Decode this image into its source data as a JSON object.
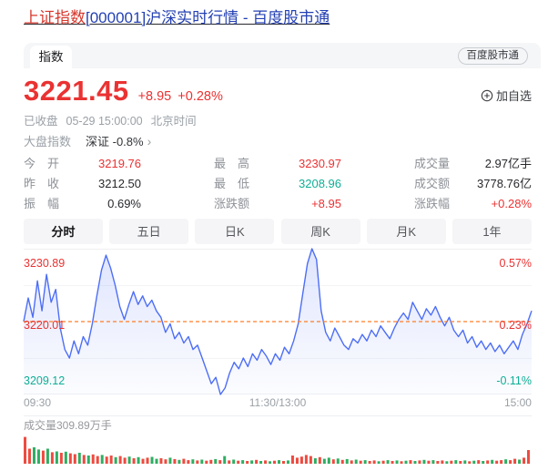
{
  "colors": {
    "red": "#ea3232",
    "green": "#0fae96",
    "dark": "#27282c",
    "gray": "#9aa0a6",
    "label_gray": "#8d9197",
    "line_blue": "#4d6ef5",
    "dashed_orange": "#ff7e26",
    "vol_red": "#ee4b40",
    "vol_green": "#2fae62",
    "link_blue": "#2440b3",
    "title_red": "#d6372c",
    "strip_bg": "#f5f6f7",
    "tab_bg": "#f5f5f7",
    "grid_line": "#eff0f3"
  },
  "header": {
    "title_stock": "上证指数",
    "title_code": "[000001]",
    "title_rest": "沪深实时行情 - 百度股市通"
  },
  "card": {
    "tab_label": "指数",
    "source_badge": "百度股市通",
    "quote": {
      "price": "3221.45",
      "change": "+8.95",
      "change_pct": "+0.28%",
      "add_watchlist": "加自选",
      "market_status": "已收盘",
      "quote_time": "05-29 15:00:00",
      "timezone": "北京时间",
      "index_group_label": "大盘指数",
      "related_index": "深证 -0.8%",
      "chevron": "›"
    },
    "stats": [
      {
        "label": "今开",
        "value": "3219.76",
        "color": "red"
      },
      {
        "label": "最高",
        "value": "3230.97",
        "color": "red"
      },
      {
        "label": "成交量",
        "value": "2.97亿手",
        "color": "dark"
      },
      {
        "label": "昨收",
        "value": "3212.50",
        "color": "dark"
      },
      {
        "label": "最低",
        "value": "3208.96",
        "color": "green"
      },
      {
        "label": "成交额",
        "value": "3778.76亿",
        "color": "dark"
      },
      {
        "label": "振幅",
        "value": "0.69%",
        "color": "dark"
      },
      {
        "label": "涨跌额",
        "value": "+8.95",
        "color": "red"
      },
      {
        "label": "涨跌幅",
        "value": "+0.28%",
        "color": "red"
      }
    ],
    "period_tabs": [
      {
        "label": "分时",
        "active": true
      },
      {
        "label": "五日",
        "active": false
      },
      {
        "label": "日K",
        "active": false
      },
      {
        "label": "周K",
        "active": false
      },
      {
        "label": "月K",
        "active": false
      },
      {
        "label": "1年",
        "active": false
      }
    ]
  },
  "chart_data": {
    "type": "line",
    "title": "上证指数 分时走势",
    "x_labels": [
      "09:30",
      "11:30/13:00",
      "15:00"
    ],
    "axis": {
      "price_top": "3230.89",
      "price_mid": "3220.01",
      "price_low": "3209.12",
      "pct_top": "0.57%",
      "pct_mid": "0.23%",
      "pct_low": "-0.11%"
    },
    "ylim_pct": [
      -0.11,
      0.57
    ],
    "dashed_mid_pct": 0.23,
    "prev_close": 3212.5,
    "series_pct": [
      0.23,
      0.34,
      0.25,
      0.42,
      0.28,
      0.45,
      0.32,
      0.38,
      0.2,
      0.1,
      0.06,
      0.14,
      0.08,
      0.16,
      0.12,
      0.22,
      0.35,
      0.47,
      0.54,
      0.48,
      0.4,
      0.3,
      0.24,
      0.31,
      0.37,
      0.31,
      0.35,
      0.3,
      0.33,
      0.28,
      0.25,
      0.18,
      0.22,
      0.15,
      0.18,
      0.13,
      0.16,
      0.1,
      0.12,
      0.06,
      0.0,
      -0.06,
      -0.03,
      -0.11,
      -0.08,
      -0.01,
      0.04,
      0.01,
      0.06,
      0.02,
      0.08,
      0.05,
      0.1,
      0.07,
      0.03,
      0.08,
      0.05,
      0.11,
      0.08,
      0.14,
      0.22,
      0.36,
      0.5,
      0.57,
      0.52,
      0.28,
      0.18,
      0.14,
      0.2,
      0.16,
      0.12,
      0.1,
      0.15,
      0.13,
      0.17,
      0.14,
      0.19,
      0.16,
      0.21,
      0.18,
      0.15,
      0.2,
      0.24,
      0.27,
      0.24,
      0.32,
      0.28,
      0.24,
      0.29,
      0.26,
      0.3,
      0.25,
      0.21,
      0.25,
      0.19,
      0.16,
      0.19,
      0.13,
      0.16,
      0.11,
      0.14,
      0.1,
      0.13,
      0.09,
      0.12,
      0.08,
      0.11,
      0.14,
      0.1,
      0.17,
      0.22,
      0.28
    ],
    "volume": {
      "label": "成交量309.89万手",
      "bars": [
        "0.98r",
        "0.55r",
        "0.60g",
        "0.52g",
        "0.48r",
        "0.55g",
        "0.42r",
        "0.45g",
        "0.40r",
        "0.44g",
        "0.38r",
        "0.35r",
        "0.40g",
        "0.32r",
        "0.30g",
        "0.34r",
        "0.28r",
        "0.32g",
        "0.26r",
        "0.30r",
        "0.24g",
        "0.28r",
        "0.22r",
        "0.26g",
        "0.20r",
        "0.24g",
        "0.18r",
        "0.22r",
        "0.25g",
        "0.18g",
        "0.20r",
        "0.16r",
        "0.22g",
        "0.17r",
        "0.14g",
        "0.18r",
        "0.13r",
        "0.16g",
        "0.12r",
        "0.15g",
        "0.11r",
        "0.14r",
        "0.17g",
        "0.13r",
        "0.28g",
        "0.12r",
        "0.15g",
        "0.11r",
        "0.13g",
        "0.10r",
        "0.12g",
        "0.14r",
        "0.10g",
        "0.12r",
        "0.09g",
        "0.11r",
        "0.13g",
        "0.10r",
        "0.12g",
        "0.30r",
        "0.22r",
        "0.26r",
        "0.32r",
        "0.28r",
        "0.20g",
        "0.24r",
        "0.18g",
        "0.22g",
        "0.16r",
        "0.19g",
        "0.14r",
        "0.17g",
        "0.12r",
        "0.15g",
        "0.11r",
        "0.13g",
        "0.10r",
        "0.12r",
        "0.09g",
        "0.11r",
        "0.13g",
        "0.10r",
        "0.12g",
        "0.09r",
        "0.11g",
        "0.13r",
        "0.10g",
        "0.12r",
        "0.14g",
        "0.11r",
        "0.13g",
        "0.10r",
        "0.12r",
        "0.09g",
        "0.11r",
        "0.13g",
        "0.10r",
        "0.12g",
        "0.09r",
        "0.11g",
        "0.13r",
        "0.10g",
        "0.12r",
        "0.14g",
        "0.11r",
        "0.13r",
        "0.16g",
        "0.13r",
        "0.18r",
        "0.15g",
        "0.22r",
        "0.50r"
      ]
    }
  }
}
